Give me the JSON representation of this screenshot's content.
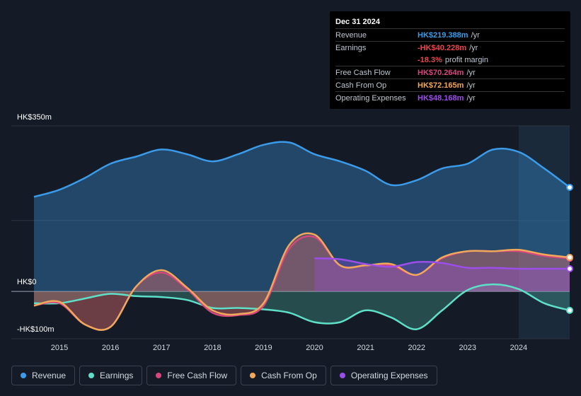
{
  "tooltip": {
    "date": "Dec 31 2024",
    "rows": [
      {
        "label": "Revenue",
        "value": "HK$219.388m",
        "unit": "/yr",
        "color": "#3b9be8"
      },
      {
        "label": "Earnings",
        "value": "-HK$40.228m",
        "unit": "/yr",
        "color": "#e8484f"
      },
      {
        "label": "",
        "value": "-18.3%",
        "unit": "profit margin",
        "color": "#e8484f"
      },
      {
        "label": "Free Cash Flow",
        "value": "HK$70.264m",
        "unit": "/yr",
        "color": "#d6477e"
      },
      {
        "label": "Cash From Op",
        "value": "HK$72.165m",
        "unit": "/yr",
        "color": "#f0a95b"
      },
      {
        "label": "Operating Expenses",
        "value": "HK$48.168m",
        "unit": "/yr",
        "color": "#9b4fe8"
      }
    ]
  },
  "legend": [
    {
      "label": "Revenue",
      "color": "#3b9be8"
    },
    {
      "label": "Earnings",
      "color": "#5ee0c8"
    },
    {
      "label": "Free Cash Flow",
      "color": "#d6477e"
    },
    {
      "label": "Cash From Op",
      "color": "#f0a95b"
    },
    {
      "label": "Operating Expenses",
      "color": "#9b4fe8"
    }
  ],
  "chart_data": {
    "type": "area",
    "title": "",
    "y_axis_labels": {
      "top": "HK$350m",
      "zero": "HK$0",
      "bottom": "-HK$100m"
    },
    "ylim": [
      -100,
      350
    ],
    "xlim": [
      2014.5,
      2025.0
    ],
    "x_ticks": [
      "2015",
      "2016",
      "2017",
      "2018",
      "2019",
      "2020",
      "2021",
      "2022",
      "2023",
      "2024"
    ],
    "x_tick_values": [
      2015,
      2016,
      2017,
      2018,
      2019,
      2020,
      2021,
      2022,
      2023,
      2024
    ],
    "highlight_start": 2024.0,
    "series": [
      {
        "name": "Revenue",
        "color": "#3b9be8",
        "x": [
          2014.5,
          2015.0,
          2015.5,
          2016.0,
          2016.5,
          2017.0,
          2017.5,
          2018.0,
          2018.5,
          2019.0,
          2019.5,
          2020.0,
          2020.5,
          2021.0,
          2021.5,
          2022.0,
          2022.5,
          2023.0,
          2023.5,
          2024.0,
          2024.5,
          2025.0
        ],
        "values": [
          200,
          215,
          240,
          270,
          285,
          300,
          290,
          275,
          290,
          310,
          315,
          290,
          275,
          255,
          225,
          235,
          260,
          270,
          300,
          295,
          260,
          220
        ]
      },
      {
        "name": "Earnings",
        "color": "#5ee0c8",
        "x": [
          2014.5,
          2015.0,
          2015.5,
          2016.0,
          2016.5,
          2017.0,
          2017.5,
          2018.0,
          2018.5,
          2019.0,
          2019.5,
          2020.0,
          2020.5,
          2021.0,
          2021.5,
          2022.0,
          2022.5,
          2023.0,
          2023.5,
          2024.0,
          2024.5,
          2025.0
        ],
        "values": [
          -25,
          -25,
          -15,
          -5,
          -10,
          -12,
          -18,
          -35,
          -35,
          -38,
          -45,
          -65,
          -65,
          -40,
          -55,
          -80,
          -40,
          3,
          15,
          5,
          -25,
          -40
        ]
      },
      {
        "name": "Free Cash Flow",
        "color": "#d6477e",
        "x": [
          2014.5,
          2015.0,
          2015.5,
          2016.0,
          2016.5,
          2017.0,
          2017.5,
          2018.0,
          2018.5,
          2019.0,
          2019.5,
          2020.0,
          2020.5,
          2021.0,
          2021.5,
          2022.0,
          2022.5,
          2023.0,
          2023.5,
          2024.0,
          2024.5,
          2025.0
        ],
        "values": [
          -30,
          -25,
          -70,
          -75,
          10,
          40,
          5,
          -45,
          -50,
          -30,
          90,
          115,
          55,
          55,
          55,
          35,
          70,
          85,
          85,
          85,
          75,
          70
        ]
      },
      {
        "name": "Cash From Op",
        "color": "#f0a95b",
        "x": [
          2014.5,
          2015.0,
          2015.5,
          2016.0,
          2016.5,
          2017.0,
          2017.5,
          2018.0,
          2018.5,
          2019.0,
          2019.5,
          2020.0,
          2020.5,
          2021.0,
          2021.5,
          2022.0,
          2022.5,
          2023.0,
          2023.5,
          2024.0,
          2024.5,
          2025.0
        ],
        "values": [
          -30,
          -22,
          -70,
          -75,
          10,
          45,
          8,
          -40,
          -48,
          -25,
          98,
          120,
          55,
          55,
          58,
          35,
          72,
          85,
          85,
          88,
          78,
          72
        ]
      },
      {
        "name": "Operating Expenses",
        "color": "#9b4fe8",
        "x": [
          2020.0,
          2020.5,
          2021.0,
          2021.5,
          2022.0,
          2022.5,
          2023.0,
          2023.5,
          2024.0,
          2024.5,
          2025.0
        ],
        "values": [
          70,
          68,
          58,
          52,
          62,
          60,
          50,
          50,
          48,
          48,
          48
        ]
      }
    ]
  }
}
